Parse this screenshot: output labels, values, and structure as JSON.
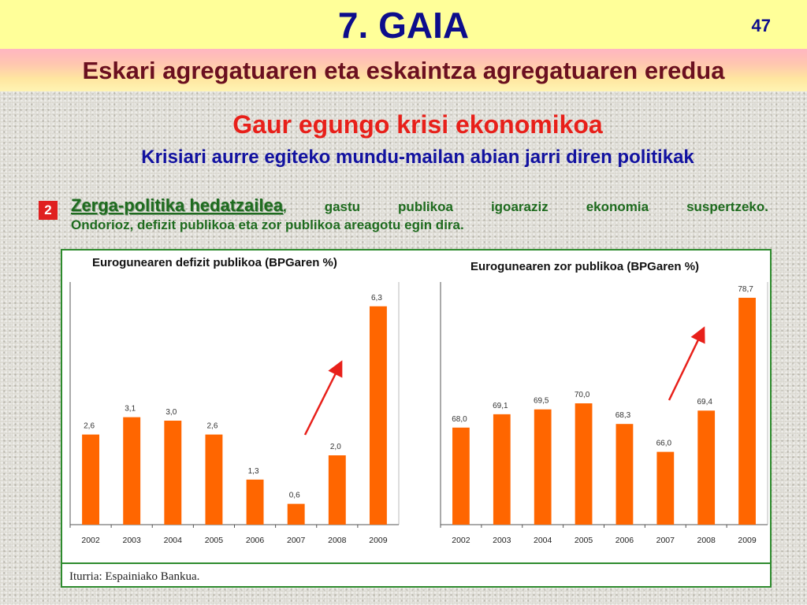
{
  "slide": {
    "title": "7. GAIA",
    "number": "47",
    "subtitle": "Eskari agregatuaren eta eskaintza agregatuaren eredua"
  },
  "content": {
    "heading": "Gaur egungo krisi ekonomikoa",
    "subheading": "Krisiari aurre egiteko mundu-mailan abian jarri diren politikak",
    "bullet": {
      "marker": "2",
      "term": "Zerga-politika hedatzailea",
      "line1_words": [
        ",",
        "gastu",
        "publikoa",
        "igoaraziz",
        "ekonomia",
        "suspertzeko."
      ],
      "line2": "Ondorioz, defizit publikoa eta zor publikoa areagotu egin dira."
    }
  },
  "source": "Iturria: Espainiako Bankua.",
  "colors": {
    "bar": "#ff6600",
    "arrow": "#e8201a",
    "panel_border": "#2e8b2e"
  },
  "chart_data": [
    {
      "type": "bar",
      "title": "Eurogunearen defizit publikoa (BPGaren %)",
      "categories": [
        "2002",
        "2003",
        "2004",
        "2005",
        "2006",
        "2007",
        "2008",
        "2009"
      ],
      "values": [
        2.6,
        3.1,
        3.0,
        2.6,
        1.3,
        0.6,
        2.0,
        6.3
      ],
      "value_labels": [
        "2,6",
        "3,1",
        "3,0",
        "2,6",
        "1,3",
        "0,6",
        "2,0",
        "6,3"
      ],
      "ylim": [
        0,
        7
      ],
      "annotation": "red upward arrow"
    },
    {
      "type": "bar",
      "title": "Eurogunearen zor publikoa (BPGaren %)",
      "categories": [
        "2002",
        "2003",
        "2004",
        "2005",
        "2006",
        "2007",
        "2008",
        "2009"
      ],
      "values": [
        68.0,
        69.1,
        69.5,
        70.0,
        68.3,
        66.0,
        69.4,
        78.7
      ],
      "value_labels": [
        "68,0",
        "69,1",
        "69,5",
        "70,0",
        "68,3",
        "66,0",
        "69,4",
        "78,7"
      ],
      "ylim": [
        60,
        80
      ],
      "annotation": "red upward arrow"
    }
  ]
}
